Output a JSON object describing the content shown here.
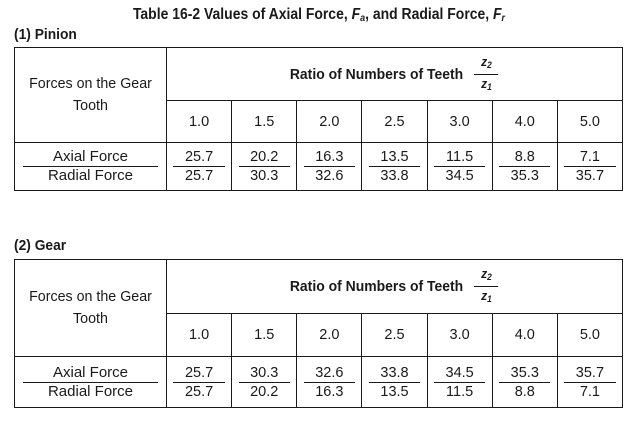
{
  "title": {
    "prefix": "Table 16-2  Values of Axial Force, ",
    "fa": "F",
    "fa_sub": "a",
    "mid": ", and Radial Force, ",
    "fr": "F",
    "fr_sub": "r"
  },
  "ratio_header": {
    "label": "Ratio of Numbers of Teeth",
    "z_num": "z",
    "z_num_sub": "2",
    "z_den": "z",
    "z_den_sub": "1"
  },
  "forces_header": "Forces on the Gear Tooth",
  "row_labels": {
    "axial": "Axial Force",
    "radial": "Radial Force"
  },
  "ratios": [
    "1.0",
    "1.5",
    "2.0",
    "2.5",
    "3.0",
    "4.0",
    "5.0"
  ],
  "sections": [
    {
      "label": "(1)  Pinion",
      "axial": [
        "25.7",
        "20.2",
        "16.3",
        "13.5",
        "11.5",
        "8.8",
        "7.1"
      ],
      "radial": [
        "25.7",
        "30.3",
        "32.6",
        "33.8",
        "34.5",
        "35.3",
        "35.7"
      ]
    },
    {
      "label": "(2)  Gear",
      "axial": [
        "25.7",
        "30.3",
        "32.6",
        "33.8",
        "34.5",
        "35.3",
        "35.7"
      ],
      "radial": [
        "25.7",
        "20.2",
        "16.3",
        "13.5",
        "11.5",
        "8.8",
        "7.1"
      ]
    }
  ]
}
